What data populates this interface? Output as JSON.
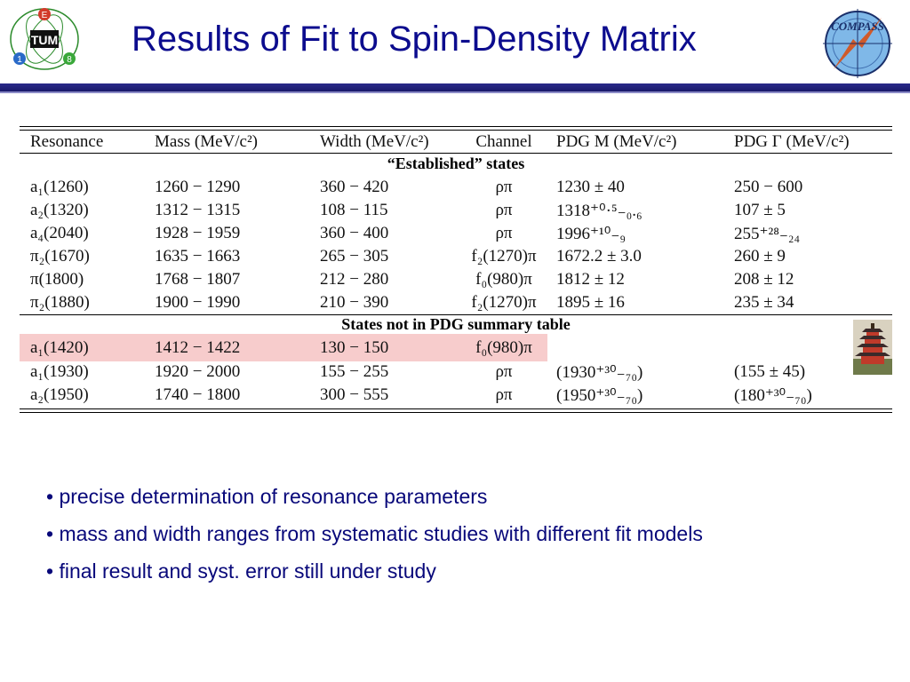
{
  "slide": {
    "title": "Results of Fit to Spin-Density Matrix",
    "logos": {
      "left": "tum-e18-logo",
      "right_text": "COMPASS"
    }
  },
  "table": {
    "headers": [
      "Resonance",
      "Mass (MeV/c²)",
      "Width (MeV/c²)",
      "Channel",
      "PDG M (MeV/c²)",
      "PDG Γ (MeV/c²)"
    ],
    "sections": [
      {
        "title": "“Established” states",
        "rows": [
          [
            "a₁(1260)",
            "1260 − 1290",
            "360 − 420",
            "ρπ",
            "1230 ± 40",
            "250 − 600"
          ],
          [
            "a₂(1320)",
            "1312 − 1315",
            "108 − 115",
            "ρπ",
            "1318⁺⁰·⁵₋₀.₆",
            "107 ± 5"
          ],
          [
            "a₄(2040)",
            "1928 − 1959",
            "360 − 400",
            "ρπ",
            "1996⁺¹⁰₋₉",
            "255⁺²⁸₋₂₄"
          ],
          [
            "π₂(1670)",
            "1635 − 1663",
            "265 − 305",
            "f₂(1270)π",
            "1672.2 ± 3.0",
            "260 ± 9"
          ],
          [
            "π(1800)",
            "1768 − 1807",
            "212 − 280",
            "f₀(980)π",
            "1812 ± 12",
            "208 ± 12"
          ],
          [
            "π₂(1880)",
            "1900 − 1990",
            "210 − 390",
            "f₂(1270)π",
            "1895 ± 16",
            "235 ± 34"
          ]
        ]
      },
      {
        "title": "States not in PDG summary table",
        "rows": [
          [
            "a₁(1420)",
            "1412 − 1422",
            "130 − 150",
            "f₀(980)π",
            "",
            ""
          ],
          [
            "a₁(1930)",
            "1920 − 2000",
            "155 − 255",
            "ρπ",
            "(1930⁺³⁰₋₇₀)",
            "(155 ± 45)"
          ],
          [
            "a₂(1950)",
            "1740 − 1800",
            "300 − 555",
            "ρπ",
            "(1950⁺³⁰₋₇₀)",
            "(180⁺³⁰₋₇₀)"
          ]
        ]
      }
    ]
  },
  "bullets": [
    "• precise determination of resonance parameters",
    "• mass and width ranges from systematic studies with different fit models",
    "• final result and syst. error still under study"
  ],
  "colors": {
    "title": "#0c0c8e",
    "bar": "#2a2a8a",
    "highlight": "#f7cccc",
    "bullet_text": "#08087a"
  }
}
